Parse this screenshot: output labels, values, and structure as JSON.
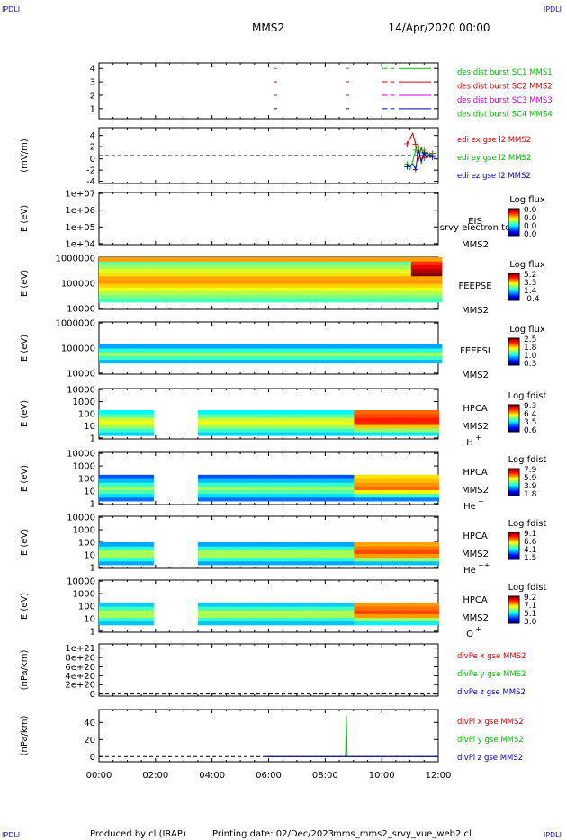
{
  "corners": {
    "top_left": "IPDLI",
    "top_right": "IPDLI",
    "bottom_left": "IPDLI",
    "bottom_right": "IPDLI"
  },
  "header": {
    "spacecraft": "MMS2",
    "date": "14/Apr/2020 00:00"
  },
  "footer": {
    "producer": "Produced by cl (IRAP)",
    "printing": "Printing date: 02/Dec/2023",
    "script": "mms_mms2_srvy_vue_web2.cl"
  },
  "time_axis": {
    "ticks": [
      "00:00",
      "02:00",
      "04:00",
      "06:00",
      "08:00",
      "10:00",
      "12:00"
    ],
    "range_hours": [
      0,
      12
    ]
  },
  "colors": {
    "red": "#e00000",
    "green": "#00c000",
    "blue": "#0000c0",
    "magenta": "#d000d0",
    "dark_blue": "#0000b0"
  },
  "chart_data": [
    {
      "type": "line",
      "panel": "burst",
      "ylabel": "",
      "yticks": [
        "4",
        "3",
        "2",
        "1"
      ],
      "ylim": [
        0.5,
        4.5
      ],
      "legend": [
        "des dist burst SC1 MMS1",
        "des dist burst SC2 MMS2",
        "des dist burst SC3 MMS3",
        "des dist burst SC4 MMS4"
      ],
      "series": [
        {
          "name": "des dist burst SC1 MMS1",
          "y": 4,
          "intervals": [
            [
              6.2,
              6.3
            ],
            [
              8.75,
              8.85
            ],
            [
              10.0,
              10.2
            ],
            [
              10.3,
              10.45
            ],
            [
              10.6,
              11.75
            ]
          ]
        },
        {
          "name": "des dist burst SC2 MMS2",
          "y": 3,
          "intervals": [
            [
              6.2,
              6.3
            ],
            [
              8.75,
              8.85
            ],
            [
              10.0,
              10.2
            ],
            [
              10.3,
              10.45
            ],
            [
              10.6,
              11.75
            ]
          ]
        },
        {
          "name": "des dist burst SC3 MMS3",
          "y": 2,
          "intervals": [
            [
              6.2,
              6.3
            ],
            [
              8.75,
              8.85
            ],
            [
              10.0,
              10.2
            ],
            [
              10.3,
              10.45
            ],
            [
              10.6,
              11.75
            ]
          ]
        },
        {
          "name": "des dist burst SC4 MMS4",
          "y": 1,
          "intervals": [
            [
              6.2,
              6.3
            ],
            [
              8.75,
              8.85
            ],
            [
              10.0,
              10.2
            ],
            [
              10.3,
              10.45
            ],
            [
              10.6,
              11.75
            ]
          ]
        }
      ]
    },
    {
      "type": "line",
      "panel": "edi",
      "ylabel": "(mV/m)",
      "yticks": [
        "4",
        "2",
        "0",
        "-2",
        "-4"
      ],
      "ylim": [
        -5,
        5
      ],
      "legend": [
        "edi ex gse l2 MMS2",
        "edi ey gse l2 MMS2",
        "edi ez gse l2 MMS2"
      ],
      "series": [
        {
          "name": "edi ex gse l2 MMS2",
          "x": [
            10.9,
            11.0,
            11.1,
            11.2,
            11.3,
            11.4,
            11.5,
            11.6,
            11.7,
            11.8
          ],
          "y": [
            2.1,
            3.0,
            4.0,
            2.0,
            -1.0,
            1.5,
            -0.5,
            0.8,
            -0.3,
            0.4
          ]
        },
        {
          "name": "edi ey gse l2 MMS2",
          "x": [
            10.9,
            11.0,
            11.1,
            11.2,
            11.3,
            11.4,
            11.5,
            11.6,
            11.7,
            11.8
          ],
          "y": [
            -1.5,
            -2.5,
            -1.0,
            1.0,
            2.0,
            -1.5,
            1.0,
            -0.5,
            0.5,
            0.0
          ]
        },
        {
          "name": "edi ez gse l2 MMS2",
          "x": [
            10.9,
            11.0,
            11.1,
            11.2,
            11.3,
            11.4,
            11.5,
            11.6,
            11.7,
            11.8
          ],
          "y": [
            -2.0,
            -2.0,
            -1.5,
            -2.5,
            1.0,
            -1.0,
            0.5,
            -0.5,
            0.2,
            -0.3
          ]
        }
      ]
    },
    {
      "type": "heatmap",
      "panel": "eis",
      "ylabel": "E (eV)",
      "yticks": [
        "1e+07",
        "1e+06",
        "1e+05",
        "1e+04"
      ],
      "instrument": "EIS",
      "spacecraft": "MMS2",
      "overlay": "srvy electron to",
      "cbar_title": "Log flux",
      "cbar_ticks": [
        "0.0",
        "0.0",
        "0.0",
        "0.0"
      ],
      "coverage": []
    },
    {
      "type": "heatmap",
      "panel": "feepse",
      "ylabel": "E (eV)",
      "yticks": [
        "1000000",
        "100000",
        "10000"
      ],
      "instrument": "FEEPSE",
      "spacecraft": "MMS2",
      "cbar_title": "Log flux",
      "cbar_ticks": [
        "5.2",
        "3.3",
        "1.4",
        "-0.4"
      ],
      "coverage": [
        [
          0,
          12
        ]
      ]
    },
    {
      "type": "heatmap",
      "panel": "feepsi",
      "ylabel": "E (eV)",
      "yticks": [
        "1000000",
        "100000",
        "10000"
      ],
      "instrument": "FEEPSI",
      "spacecraft": "MMS2",
      "cbar_title": "Log flux",
      "cbar_ticks": [
        "2.5",
        "1.8",
        "1.0",
        "0.3"
      ],
      "coverage": [
        [
          0,
          12
        ]
      ]
    },
    {
      "type": "heatmap",
      "panel": "hpca_h",
      "ylabel": "E (eV)",
      "yticks": [
        "10000",
        "1000",
        "100",
        "10",
        "1"
      ],
      "instrument": "HPCA",
      "spacecraft": "MMS2",
      "species": "H",
      "species_sup": "+",
      "cbar_title": "Log fdist",
      "cbar_ticks": [
        "9.3",
        "6.4",
        "3.5",
        "0.6"
      ],
      "coverage": [
        [
          0,
          1.9
        ],
        [
          3.5,
          12
        ]
      ]
    },
    {
      "type": "heatmap",
      "panel": "hpca_he",
      "ylabel": "E (eV)",
      "yticks": [
        "10000",
        "1000",
        "100",
        "10",
        "1"
      ],
      "instrument": "HPCA",
      "spacecraft": "MMS2",
      "species": "He",
      "species_sup": "+",
      "cbar_title": "Log fdist",
      "cbar_ticks": [
        "7.9",
        "5.9",
        "3.9",
        "1.8"
      ],
      "coverage": [
        [
          0,
          1.9
        ],
        [
          3.5,
          12
        ]
      ]
    },
    {
      "type": "heatmap",
      "panel": "hpca_hepp",
      "ylabel": "E (eV)",
      "yticks": [
        "10000",
        "1000",
        "100",
        "10",
        "1"
      ],
      "instrument": "HPCA",
      "spacecraft": "MMS2",
      "species": "He",
      "species_sup": "++",
      "cbar_title": "Log fdist",
      "cbar_ticks": [
        "9.1",
        "6.6",
        "4.1",
        "1.5"
      ],
      "coverage": [
        [
          0,
          1.9
        ],
        [
          3.5,
          12
        ]
      ]
    },
    {
      "type": "heatmap",
      "panel": "hpca_o",
      "ylabel": "E (eV)",
      "yticks": [
        "10000",
        "1000",
        "100",
        "10",
        "1"
      ],
      "instrument": "HPCA",
      "spacecraft": "MMS2",
      "species": "O",
      "species_sup": "+",
      "cbar_title": "Log fdist",
      "cbar_ticks": [
        "9.2",
        "7.1",
        "5.1",
        "3.0"
      ],
      "coverage": [
        [
          0,
          1.9
        ],
        [
          3.5,
          12
        ]
      ]
    },
    {
      "type": "line",
      "panel": "divpe",
      "ylabel": "(nPa/km)",
      "yticks": [
        "1e+21",
        "8e+20",
        "6e+20",
        "4e+20",
        "2e+20",
        "0"
      ],
      "ylim": [
        0,
        1e+21
      ],
      "legend": [
        "divPe x gse MMS2",
        "divPe y gse MMS2",
        "divPe z gse MMS2"
      ],
      "series": [
        {
          "name": "divPe x gse MMS2",
          "x": [],
          "y": []
        },
        {
          "name": "divPe y gse MMS2",
          "x": [],
          "y": []
        },
        {
          "name": "divPe z gse MMS2",
          "x": [],
          "y": []
        }
      ]
    },
    {
      "type": "line",
      "panel": "divpi",
      "ylabel": "(nPa/km)",
      "yticks": [
        "40",
        "20",
        "0"
      ],
      "ylim": [
        -6,
        55
      ],
      "legend": [
        "divPi x gse MMS2",
        "divPi y gse MMS2",
        "divPi z gse MMS2"
      ],
      "series": [
        {
          "name": "divPi x gse MMS2",
          "x": [
            5.9,
            8.7,
            8.74,
            8.78,
            12
          ],
          "y": [
            0,
            0,
            2,
            0,
            0
          ]
        },
        {
          "name": "divPi y gse MMS2",
          "x": [
            5.9,
            8.72,
            8.75,
            8.78,
            12
          ],
          "y": [
            0,
            0,
            48,
            0,
            0
          ]
        },
        {
          "name": "divPi z gse MMS2",
          "x": [
            5.9,
            8.7,
            8.74,
            8.78,
            12
          ],
          "y": [
            0,
            0,
            1,
            0,
            0
          ]
        }
      ]
    }
  ]
}
